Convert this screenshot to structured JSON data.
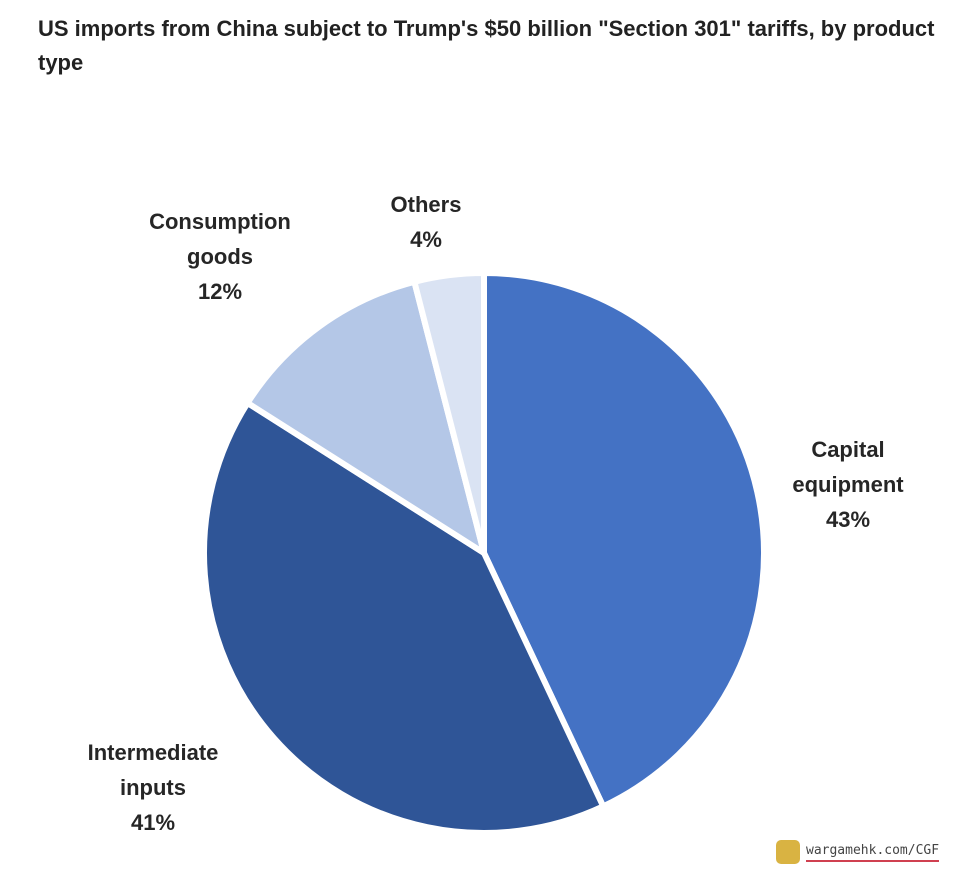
{
  "chart_data": {
    "type": "pie",
    "title": "US imports from China subject to Trump's $50 billion \"Section 301\" tariffs, by product type",
    "start_angle": "12 o'clock, clockwise",
    "slices": [
      {
        "label": "Capital equipment",
        "label_lines": [
          "Capital",
          "equipment"
        ],
        "value": 43,
        "value_label": "43%",
        "color": "#4472C4"
      },
      {
        "label": "Intermediate inputs",
        "label_lines": [
          "Intermediate",
          "inputs"
        ],
        "value": 41,
        "value_label": "41%",
        "color": "#2F5597"
      },
      {
        "label": "Consumption goods",
        "label_lines": [
          "Consumption",
          "goods"
        ],
        "value": 12,
        "value_label": "12%",
        "color": "#B4C7E7"
      },
      {
        "label": "Others",
        "label_lines": [
          "Others"
        ],
        "value": 4,
        "value_label": "4%",
        "color": "#DAE3F3"
      }
    ]
  },
  "watermark": {
    "text": "wargamehk.com/CGF",
    "logo_letter": "G"
  }
}
